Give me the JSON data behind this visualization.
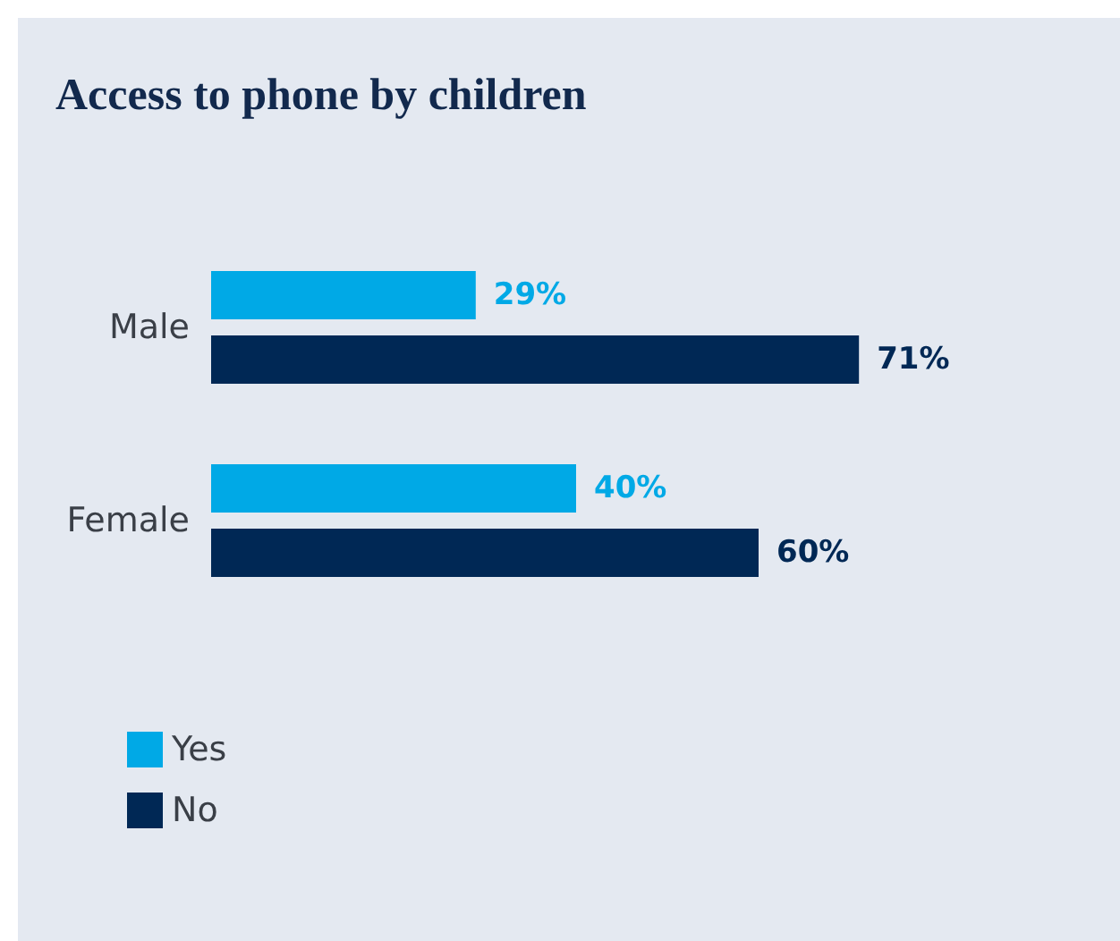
{
  "chart_data": {
    "type": "bar",
    "orientation": "horizontal",
    "title": "Access to phone by children",
    "categories": [
      "Male",
      "Female"
    ],
    "series": [
      {
        "name": "Yes",
        "color": "#00a9e6",
        "values": [
          29,
          40
        ],
        "value_labels": [
          "29%",
          "40%"
        ]
      },
      {
        "name": "No",
        "color": "#002855",
        "values": [
          71,
          60
        ],
        "value_labels": [
          "71%",
          "60%"
        ]
      }
    ],
    "tick_labels": "y",
    "grid": false,
    "legend": "bottom left"
  }
}
